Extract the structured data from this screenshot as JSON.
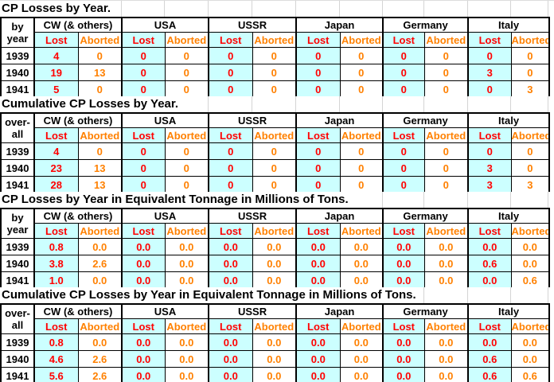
{
  "colors": {
    "lost_text": "#FF0000",
    "aborted_text": "#FF8000",
    "lost_cell_bg": "#CCFFFF",
    "aborted_cell_bg": "#FFFFFF",
    "border": "#000000",
    "gridline": "#D4D4D4"
  },
  "countries": [
    "CW (& others)",
    "USA",
    "USSR",
    "Japan",
    "Germany",
    "Italy"
  ],
  "sub_headers": {
    "lost": "Lost",
    "aborted": "Aborted"
  },
  "sections": [
    {
      "title": "CP Losses by Year.",
      "row_label": {
        "line1": "by",
        "line2": "year"
      },
      "rows": [
        {
          "year": "1939",
          "values": [
            "4",
            "0",
            "0",
            "0",
            "0",
            "0",
            "0",
            "0",
            "0",
            "0",
            "0",
            "0"
          ]
        },
        {
          "year": "1940",
          "values": [
            "19",
            "13",
            "0",
            "0",
            "0",
            "0",
            "0",
            "0",
            "0",
            "0",
            "3",
            "0"
          ]
        },
        {
          "year": "1941",
          "values": [
            "5",
            "0",
            "0",
            "0",
            "0",
            "0",
            "0",
            "0",
            "0",
            "0",
            "0",
            "3"
          ]
        }
      ]
    },
    {
      "title": "Cumulative CP Losses by Year.",
      "row_label": {
        "line1": "over-",
        "line2": "all"
      },
      "rows": [
        {
          "year": "1939",
          "values": [
            "4",
            "0",
            "0",
            "0",
            "0",
            "0",
            "0",
            "0",
            "0",
            "0",
            "0",
            "0"
          ]
        },
        {
          "year": "1940",
          "values": [
            "23",
            "13",
            "0",
            "0",
            "0",
            "0",
            "0",
            "0",
            "0",
            "0",
            "3",
            "0"
          ]
        },
        {
          "year": "1941",
          "values": [
            "28",
            "13",
            "0",
            "0",
            "0",
            "0",
            "0",
            "0",
            "0",
            "0",
            "3",
            "3"
          ]
        }
      ]
    },
    {
      "title": "CP Losses by Year in Equivalent Tonnage in Millions of Tons.",
      "row_label": {
        "line1": "by",
        "line2": "year"
      },
      "rows": [
        {
          "year": "1939",
          "values": [
            "0.8",
            "0.0",
            "0.0",
            "0.0",
            "0.0",
            "0.0",
            "0.0",
            "0.0",
            "0.0",
            "0.0",
            "0.0",
            "0.0"
          ]
        },
        {
          "year": "1940",
          "values": [
            "3.8",
            "2.6",
            "0.0",
            "0.0",
            "0.0",
            "0.0",
            "0.0",
            "0.0",
            "0.0",
            "0.0",
            "0.6",
            "0.0"
          ]
        },
        {
          "year": "1941",
          "values": [
            "1.0",
            "0.0",
            "0.0",
            "0.0",
            "0.0",
            "0.0",
            "0.0",
            "0.0",
            "0.0",
            "0.0",
            "0.0",
            "0.6"
          ]
        }
      ]
    },
    {
      "title": "Cumulative CP Losses by Year in Equivalent Tonnage in Millions of Tons.",
      "row_label": {
        "line1": "over-",
        "line2": "all"
      },
      "rows": [
        {
          "year": "1939",
          "values": [
            "0.8",
            "0.0",
            "0.0",
            "0.0",
            "0.0",
            "0.0",
            "0.0",
            "0.0",
            "0.0",
            "0.0",
            "0.0",
            "0.0"
          ]
        },
        {
          "year": "1940",
          "values": [
            "4.6",
            "2.6",
            "0.0",
            "0.0",
            "0.0",
            "0.0",
            "0.0",
            "0.0",
            "0.0",
            "0.0",
            "0.6",
            "0.0"
          ]
        },
        {
          "year": "1941",
          "values": [
            "5.6",
            "2.6",
            "0.0",
            "0.0",
            "0.0",
            "0.0",
            "0.0",
            "0.0",
            "0.0",
            "0.0",
            "0.6",
            "0.6"
          ]
        }
      ]
    }
  ]
}
